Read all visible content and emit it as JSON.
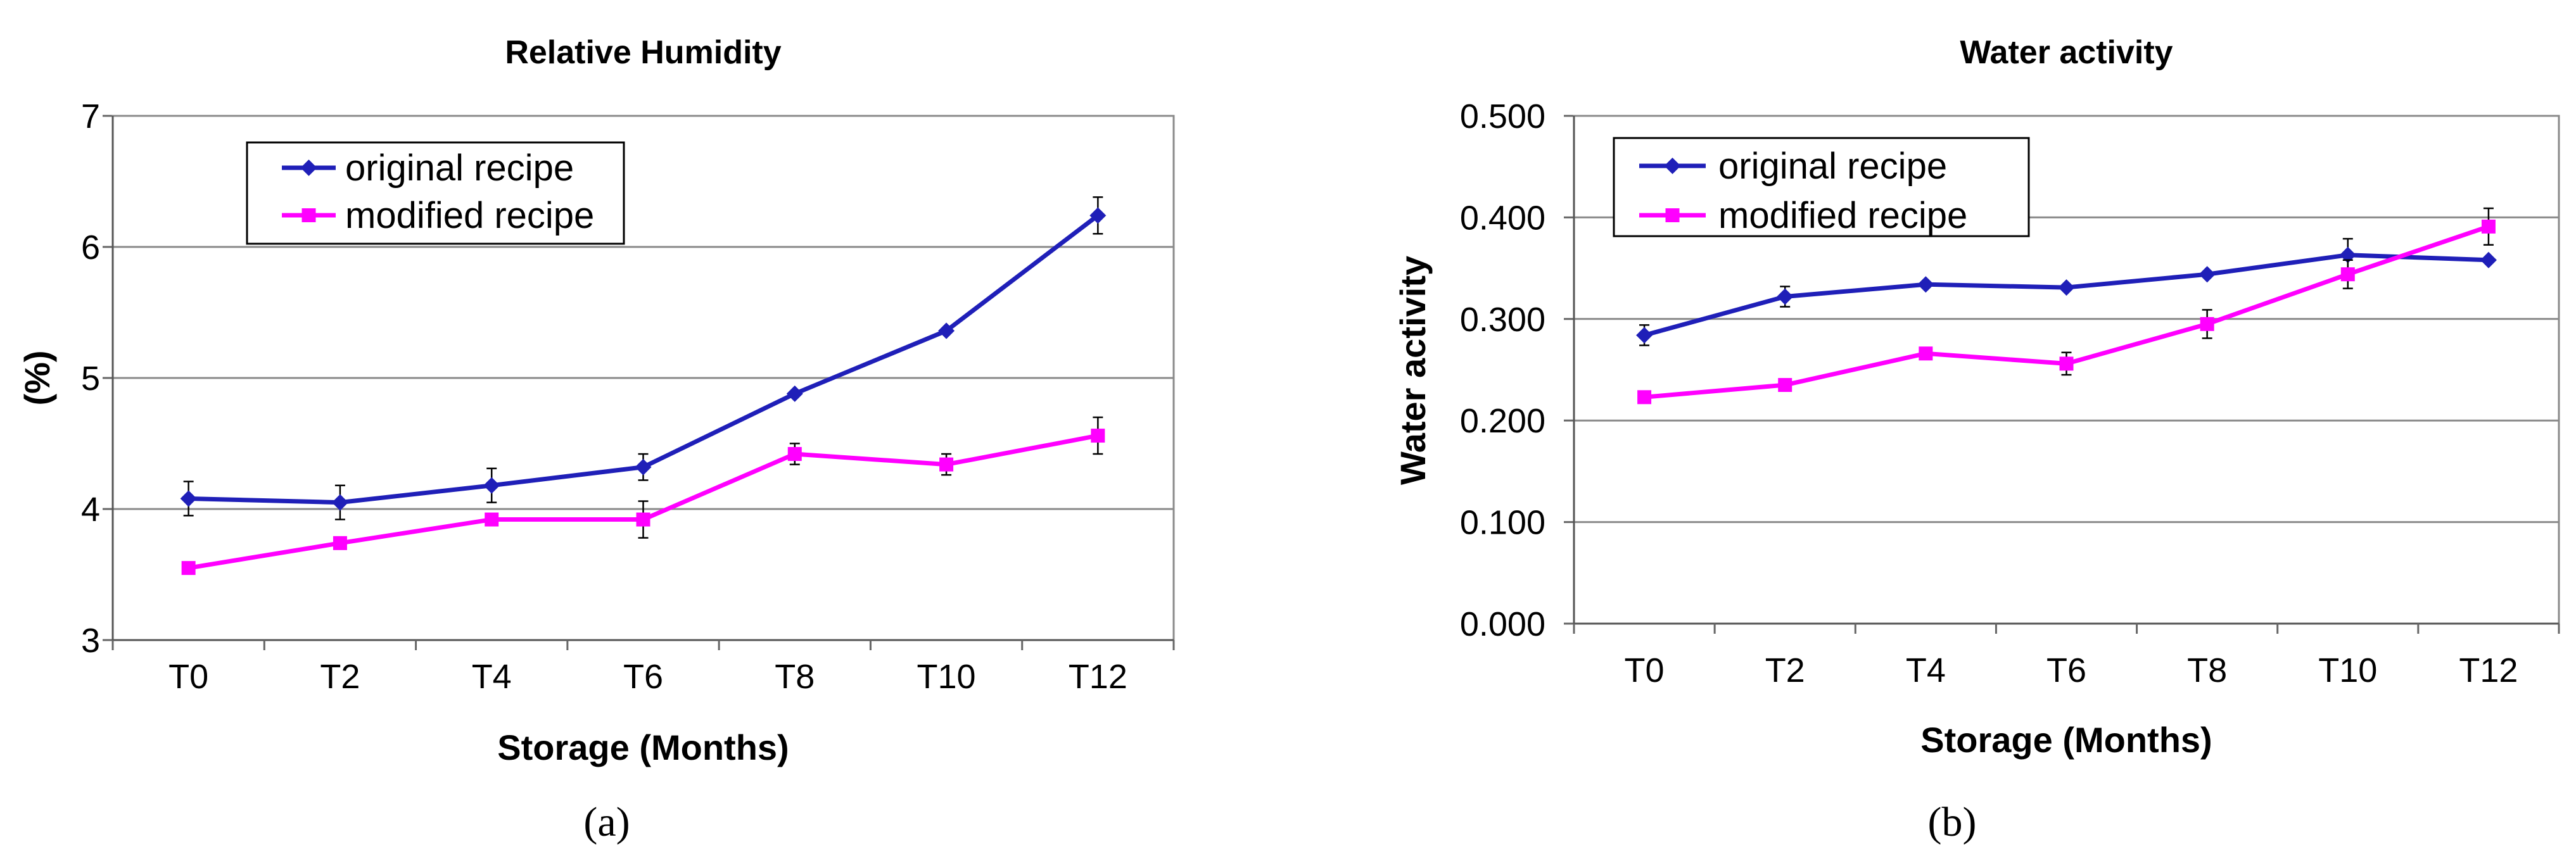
{
  "chart_data": [
    {
      "type": "line",
      "title": "Relative Humidity",
      "xlabel": "Storage (Months)",
      "ylabel": "(%)",
      "panel_label": "(a)",
      "categories": [
        "T0",
        "T2",
        "T4",
        "T6",
        "T8",
        "T10",
        "T12"
      ],
      "ylim": [
        3,
        7
      ],
      "yticks": [
        "3",
        "4",
        "5",
        "6",
        "7"
      ],
      "grid": true,
      "legend_position": "top-left",
      "series": [
        {
          "name": "original recipe",
          "color": "#1F1FB8",
          "marker": "diamond",
          "values": [
            4.08,
            4.05,
            4.18,
            4.32,
            4.88,
            5.36,
            6.24
          ],
          "errors": [
            0.13,
            0.13,
            0.13,
            0.1,
            0.0,
            0.0,
            0.14
          ]
        },
        {
          "name": "modified recipe",
          "color": "#FF00FF",
          "marker": "square",
          "values": [
            3.55,
            3.74,
            3.92,
            3.92,
            4.42,
            4.34,
            4.56
          ],
          "errors": [
            0.0,
            0.0,
            0.0,
            0.14,
            0.08,
            0.08,
            0.14
          ]
        }
      ]
    },
    {
      "type": "line",
      "title": "Water activity",
      "xlabel": "Storage (Months)",
      "ylabel": "Water activity",
      "panel_label": "(b)",
      "categories": [
        "T0",
        "T2",
        "T4",
        "T6",
        "T8",
        "T10",
        "T12"
      ],
      "ylim": [
        0,
        0.5
      ],
      "yticks": [
        "0.000",
        "0.100",
        "0.200",
        "0.300",
        "0.400",
        "0.500"
      ],
      "grid": true,
      "legend_position": "top-left",
      "series": [
        {
          "name": "original recipe",
          "color": "#1F1FB8",
          "marker": "diamond",
          "values": [
            0.284,
            0.322,
            0.334,
            0.331,
            0.344,
            0.363,
            0.358
          ],
          "errors": [
            0.01,
            0.01,
            0.0,
            0.0,
            0.0,
            0.016,
            0.0
          ]
        },
        {
          "name": "modified recipe",
          "color": "#FF00FF",
          "marker": "square",
          "values": [
            0.223,
            0.235,
            0.266,
            0.256,
            0.295,
            0.344,
            0.391
          ],
          "errors": [
            0.0,
            0.0,
            0.0,
            0.011,
            0.014,
            0.014,
            0.018
          ]
        }
      ]
    }
  ]
}
